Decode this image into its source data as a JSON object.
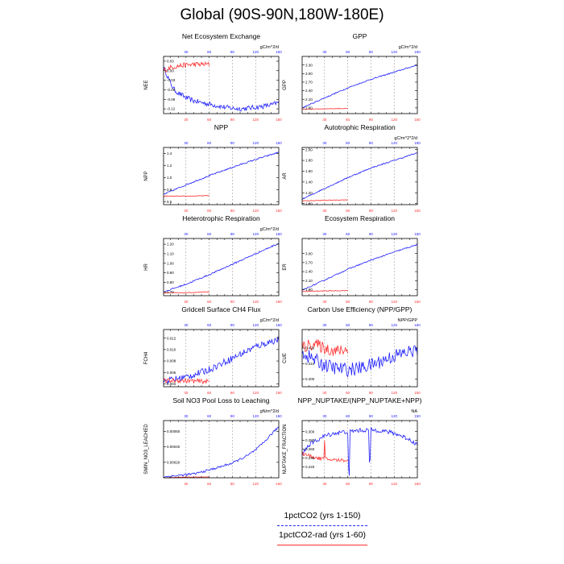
{
  "title": "Global (90S-90N,180W-180E)",
  "colors": {
    "blue": "#2020ff",
    "red": "#ff3030",
    "axis": "#000000",
    "grid": "#888888"
  },
  "legend": [
    {
      "label": "1pctCO2 (yrs 1-150)",
      "color": "#2020ff",
      "style": "dashed"
    },
    {
      "label": "1pctCO2-rad (yrs 1-60)",
      "color": "#ff3030",
      "style": "solid"
    }
  ],
  "chart_data": [
    {
      "type": "line",
      "title": "Net Ecosystem Exchange",
      "units": "gC/m^2/d",
      "ylabel": "NEE",
      "ylim": [
        -0.135,
        0.045
      ],
      "yticks": [
        "0.03",
        "0.00",
        "-0.03",
        "-0.06",
        "-0.09",
        "-0.12"
      ],
      "ytick_values": [
        0.03,
        0.0,
        -0.03,
        -0.06,
        -0.09,
        -0.12
      ],
      "top_ticks": [
        "30",
        "60",
        "90",
        "120",
        "150"
      ],
      "bottom_ticks": [
        "30",
        "60",
        "90",
        "120",
        "150"
      ],
      "series": [
        {
          "color": "blue",
          "x": [
            1,
            5,
            10,
            15,
            20,
            30,
            40,
            50,
            60,
            70,
            80,
            90,
            100,
            110,
            120,
            130,
            140,
            150
          ],
          "y": [
            0.01,
            -0.01,
            -0.04,
            -0.06,
            -0.07,
            -0.085,
            -0.095,
            -0.1,
            -0.105,
            -0.11,
            -0.115,
            -0.118,
            -0.12,
            -0.118,
            -0.115,
            -0.112,
            -0.108,
            -0.1
          ],
          "noise": 0.008
        },
        {
          "color": "red",
          "x": [
            1,
            10,
            20,
            30,
            40,
            50,
            60
          ],
          "y": [
            0.0,
            0.01,
            0.015,
            0.018,
            0.02,
            0.02,
            0.02
          ],
          "noise": 0.008
        }
      ]
    },
    {
      "type": "line",
      "title": "GPP",
      "units": "gC/m^2/d",
      "ylabel": "GPP",
      "ylim": [
        1.6,
        3.6
      ],
      "yticks": [
        "3.30",
        "3.00",
        "2.70",
        "2.40",
        "2.10",
        "1.80"
      ],
      "ytick_values": [
        3.3,
        3.0,
        2.7,
        2.4,
        2.1,
        1.8
      ],
      "top_ticks": [
        "30",
        "60",
        "90",
        "120",
        "150"
      ],
      "bottom_ticks": [
        "30",
        "60",
        "90",
        "120",
        "150"
      ],
      "series": [
        {
          "color": "blue",
          "x": [
            1,
            30,
            60,
            90,
            120,
            150
          ],
          "y": [
            1.8,
            2.15,
            2.5,
            2.8,
            3.05,
            3.3
          ],
          "noise": 0.02
        },
        {
          "color": "red",
          "x": [
            1,
            30,
            60
          ],
          "y": [
            1.75,
            1.77,
            1.78
          ],
          "noise": 0.01
        }
      ]
    },
    {
      "type": "line",
      "title": "NPP",
      "units": "",
      "ylabel": "NPP",
      "ylim": [
        0.55,
        1.5
      ],
      "yticks": [
        "1.4",
        "1.2",
        "1.0",
        "0.8",
        "0.6"
      ],
      "ytick_values": [
        1.4,
        1.2,
        1.0,
        0.8,
        0.6
      ],
      "top_ticks": [
        "30",
        "60",
        "90",
        "120",
        "150"
      ],
      "bottom_ticks": [
        "30",
        "60",
        "90",
        "120",
        "150"
      ],
      "series": [
        {
          "color": "blue",
          "x": [
            1,
            30,
            60,
            90,
            120,
            150
          ],
          "y": [
            0.72,
            0.88,
            1.03,
            1.17,
            1.3,
            1.42
          ],
          "noise": 0.012
        },
        {
          "color": "red",
          "x": [
            1,
            30,
            60
          ],
          "y": [
            0.69,
            0.69,
            0.7
          ],
          "noise": 0.006
        }
      ]
    },
    {
      "type": "line",
      "title": "Autotrophic Respiration",
      "units": "gC/m^2*2/d",
      "ylabel": "AR",
      "ylim": [
        0.98,
        2.04
      ],
      "yticks": [
        "2.00",
        "1.80",
        "1.60",
        "1.40",
        "1.20",
        "1.00"
      ],
      "ytick_values": [
        2.0,
        1.8,
        1.6,
        1.4,
        1.2,
        1.0
      ],
      "top_ticks": [
        "30",
        "60",
        "90",
        "120",
        "150"
      ],
      "bottom_ticks": [
        "30",
        "60",
        "90",
        "120",
        "150"
      ],
      "series": [
        {
          "color": "blue",
          "x": [
            1,
            30,
            60,
            90,
            120,
            150
          ],
          "y": [
            1.08,
            1.28,
            1.48,
            1.66,
            1.8,
            1.94
          ],
          "noise": 0.012
        },
        {
          "color": "red",
          "x": [
            1,
            30,
            60
          ],
          "y": [
            1.05,
            1.06,
            1.07
          ],
          "noise": 0.006
        }
      ]
    },
    {
      "type": "line",
      "title": "Heterotrophic Respiration",
      "units": "gC/m^2/d",
      "ylabel": "HR",
      "ylim": [
        0.66,
        1.26
      ],
      "yticks": [
        "1.20",
        "1.10",
        "1.00",
        "0.90",
        "0.80",
        "0.70"
      ],
      "ytick_values": [
        1.2,
        1.1,
        1.0,
        0.9,
        0.8,
        0.7
      ],
      "top_ticks": [
        "30",
        "60",
        "90",
        "120",
        "150"
      ],
      "bottom_ticks": [
        "30",
        "60",
        "90",
        "120",
        "150"
      ],
      "series": [
        {
          "color": "blue",
          "x": [
            1,
            30,
            60,
            90,
            120,
            150
          ],
          "y": [
            0.7,
            0.78,
            0.88,
            0.99,
            1.1,
            1.21
          ],
          "noise": 0.008
        },
        {
          "color": "red",
          "x": [
            1,
            30,
            60
          ],
          "y": [
            0.69,
            0.69,
            0.7
          ],
          "noise": 0.004
        }
      ]
    },
    {
      "type": "line",
      "title": "Ecosystem Respiration",
      "units": "",
      "ylabel": "ER",
      "ylim": [
        1.6,
        3.5
      ],
      "yticks": [
        "3.00",
        "2.70",
        "2.40",
        "2.10",
        "1.80"
      ],
      "ytick_values": [
        3.0,
        2.7,
        2.4,
        2.1,
        1.8
      ],
      "top_ticks": [
        "30",
        "60",
        "90",
        "120",
        "150"
      ],
      "bottom_ticks": [
        "30",
        "60",
        "90",
        "120",
        "150"
      ],
      "series": [
        {
          "color": "blue",
          "x": [
            1,
            30,
            60,
            90,
            120,
            150
          ],
          "y": [
            1.78,
            2.12,
            2.48,
            2.78,
            3.05,
            3.3
          ],
          "noise": 0.02
        },
        {
          "color": "red",
          "x": [
            1,
            30,
            60
          ],
          "y": [
            1.74,
            1.76,
            1.77
          ],
          "noise": 0.01
        }
      ]
    },
    {
      "type": "line",
      "title": "Gridcell Surface CH4 Flux",
      "units": "gC/m^2/d",
      "ylabel": "FCH4",
      "ylim": [
        0.0035,
        0.0135
      ],
      "yticks": [
        "0.012",
        "0.010",
        "0.008",
        "0.006",
        "0.004"
      ],
      "ytick_values": [
        0.012,
        0.01,
        0.008,
        0.006,
        0.004
      ],
      "top_ticks": [
        "30",
        "60",
        "90",
        "120",
        "150"
      ],
      "bottom_ticks": [
        "30",
        "60",
        "90",
        "120",
        "150"
      ],
      "series": [
        {
          "color": "blue",
          "x": [
            1,
            15,
            30,
            45,
            60,
            75,
            90,
            105,
            120,
            135,
            150
          ],
          "y": [
            0.0045,
            0.0048,
            0.0052,
            0.0058,
            0.0065,
            0.0075,
            0.0085,
            0.0095,
            0.0105,
            0.0112,
            0.0118
          ],
          "noise": 0.0006
        },
        {
          "color": "red",
          "x": [
            1,
            20,
            40,
            60
          ],
          "y": [
            0.0045,
            0.0046,
            0.0045,
            0.0044
          ],
          "noise": 0.0004
        }
      ]
    },
    {
      "type": "line",
      "title": "Carbon Use Efficiency (NPP/GPP)",
      "units": "NPP/GPP",
      "ylabel": "CUE",
      "ylim": [
        0.395,
        0.432
      ],
      "yticks": [
        "0.420",
        "0.410",
        "0.400"
      ],
      "ytick_values": [
        0.42,
        0.41,
        0.4
      ],
      "top_ticks": [
        "30",
        "60",
        "90",
        "120",
        "150"
      ],
      "bottom_ticks": [
        "30",
        "60",
        "90",
        "120",
        "150"
      ],
      "series": [
        {
          "color": "blue",
          "x": [
            1,
            15,
            30,
            45,
            60,
            75,
            90,
            105,
            120,
            135,
            150
          ],
          "y": [
            0.417,
            0.413,
            0.409,
            0.407,
            0.406,
            0.407,
            0.409,
            0.412,
            0.415,
            0.417,
            0.419
          ],
          "noise": 0.0045
        },
        {
          "color": "red",
          "x": [
            1,
            15,
            30,
            45,
            60
          ],
          "y": [
            0.42,
            0.423,
            0.42,
            0.418,
            0.419
          ],
          "noise": 0.004
        }
      ]
    },
    {
      "type": "line",
      "title": "Soil NO3 Pool Loss to Leaching",
      "units": "gN/m^2/d",
      "ylabel": "SMIN_NO3_LEACHED",
      "ylim": [
        0.0,
        0.00074
      ],
      "yticks": [
        "0.00060",
        "0.00040",
        "0.00020"
      ],
      "ytick_values": [
        0.0006,
        0.0004,
        0.0002
      ],
      "top_ticks": [
        "30",
        "60",
        "90",
        "120",
        "150"
      ],
      "bottom_ticks": [
        "30",
        "60",
        "90",
        "120",
        "150"
      ],
      "series": [
        {
          "color": "blue",
          "x": [
            1,
            20,
            40,
            60,
            70,
            80,
            90,
            100,
            110,
            120,
            130,
            140,
            150
          ],
          "y": [
            1e-05,
            3e-05,
            5e-05,
            0.0001,
            0.00013,
            0.00016,
            0.00019,
            0.00024,
            0.00029,
            0.00036,
            0.00045,
            0.00056,
            0.00066
          ],
          "noise": 1.5e-05
        },
        {
          "color": "red",
          "x": [
            1,
            30,
            60
          ],
          "y": [
            0.0,
            1e-05,
            1e-05
          ],
          "noise": 3e-06
        }
      ]
    },
    {
      "type": "line",
      "title": "NPP_NUPTAKE/(NPP_NUPTAKE+NPP)",
      "units": "NA",
      "ylabel": "NUPTAKE_FRACTION",
      "ylim": [
        0.195,
        0.325
      ],
      "yticks": [
        "0.300",
        "0.280",
        "0.260",
        "0.240",
        "0.220"
      ],
      "ytick_values": [
        0.3,
        0.28,
        0.26,
        0.24,
        0.22
      ],
      "top_ticks": [
        "30",
        "60",
        "90",
        "120",
        "150"
      ],
      "bottom_ticks": [
        "30",
        "60",
        "90",
        "120",
        "150"
      ],
      "series": [
        {
          "color": "blue",
          "x": [
            1,
            10,
            20,
            30,
            40,
            50,
            60,
            70,
            80,
            90,
            100,
            110,
            120,
            130,
            140,
            150
          ],
          "y": [
            0.25,
            0.27,
            0.28,
            0.29,
            0.295,
            0.298,
            0.3,
            0.302,
            0.303,
            0.304,
            0.303,
            0.3,
            0.296,
            0.29,
            0.282,
            0.27
          ],
          "noise": 0.005,
          "spikes": [
            [
              61,
              0.22
            ],
            [
              62,
              0.2
            ],
            [
              88,
              0.23
            ],
            [
              89,
              0.24
            ]
          ]
        },
        {
          "color": "red",
          "x": [
            1,
            10,
            20,
            30,
            40,
            50,
            60
          ],
          "y": [
            0.25,
            0.245,
            0.24,
            0.238,
            0.236,
            0.235,
            0.235
          ],
          "noise": 0.004,
          "spikes": [
            [
              30,
              0.28
            ]
          ]
        }
      ]
    }
  ]
}
